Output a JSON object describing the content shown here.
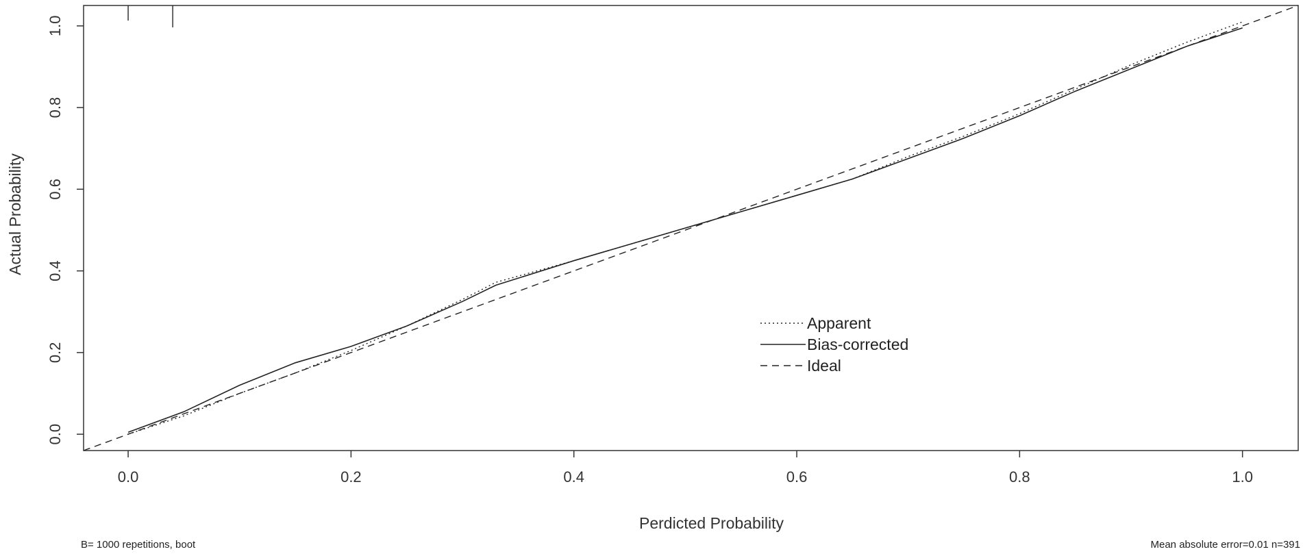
{
  "chart_data": {
    "type": "line",
    "xlabel": "Perdicted Probability",
    "ylabel": "Actual Probability",
    "xlim": [
      -0.04,
      1.05
    ],
    "ylim": [
      -0.04,
      1.05
    ],
    "x_ticks": [
      "0.0",
      "0.2",
      "0.4",
      "0.6",
      "0.8",
      "1.0"
    ],
    "y_ticks": [
      "0.0",
      "0.2",
      "0.4",
      "0.6",
      "0.8",
      "1.0"
    ],
    "grid": false,
    "legend_position": "center-right",
    "rug_x": [
      0.0,
      0.04
    ],
    "series": [
      {
        "name": "Apparent",
        "line_style": "dotted",
        "x": [
          0.0,
          0.05,
          0.1,
          0.15,
          0.2,
          0.25,
          0.3,
          0.33,
          0.4,
          0.45,
          0.5,
          0.55,
          0.6,
          0.65,
          0.7,
          0.75,
          0.8,
          0.85,
          0.9,
          0.95,
          1.0
        ],
        "y": [
          0.0,
          0.045,
          0.1,
          0.15,
          0.205,
          0.265,
          0.33,
          0.372,
          0.425,
          0.465,
          0.505,
          0.545,
          0.585,
          0.625,
          0.68,
          0.73,
          0.785,
          0.845,
          0.905,
          0.96,
          1.01
        ]
      },
      {
        "name": "Bias-corrected",
        "line_style": "solid",
        "x": [
          0.0,
          0.05,
          0.1,
          0.15,
          0.2,
          0.25,
          0.3,
          0.33,
          0.4,
          0.45,
          0.5,
          0.55,
          0.6,
          0.65,
          0.7,
          0.75,
          0.8,
          0.85,
          0.9,
          0.95,
          1.0
        ],
        "y": [
          0.005,
          0.055,
          0.12,
          0.175,
          0.215,
          0.265,
          0.325,
          0.365,
          0.425,
          0.465,
          0.505,
          0.545,
          0.585,
          0.625,
          0.675,
          0.725,
          0.78,
          0.84,
          0.895,
          0.95,
          0.995
        ]
      },
      {
        "name": "Ideal",
        "line_style": "dashed",
        "x": [
          -0.04,
          1.05
        ],
        "y": [
          -0.04,
          1.05
        ]
      }
    ],
    "footnote_left": "B= 1000 repetitions, boot",
    "footnote_right": "Mean absolute error=0.01 n=391"
  }
}
